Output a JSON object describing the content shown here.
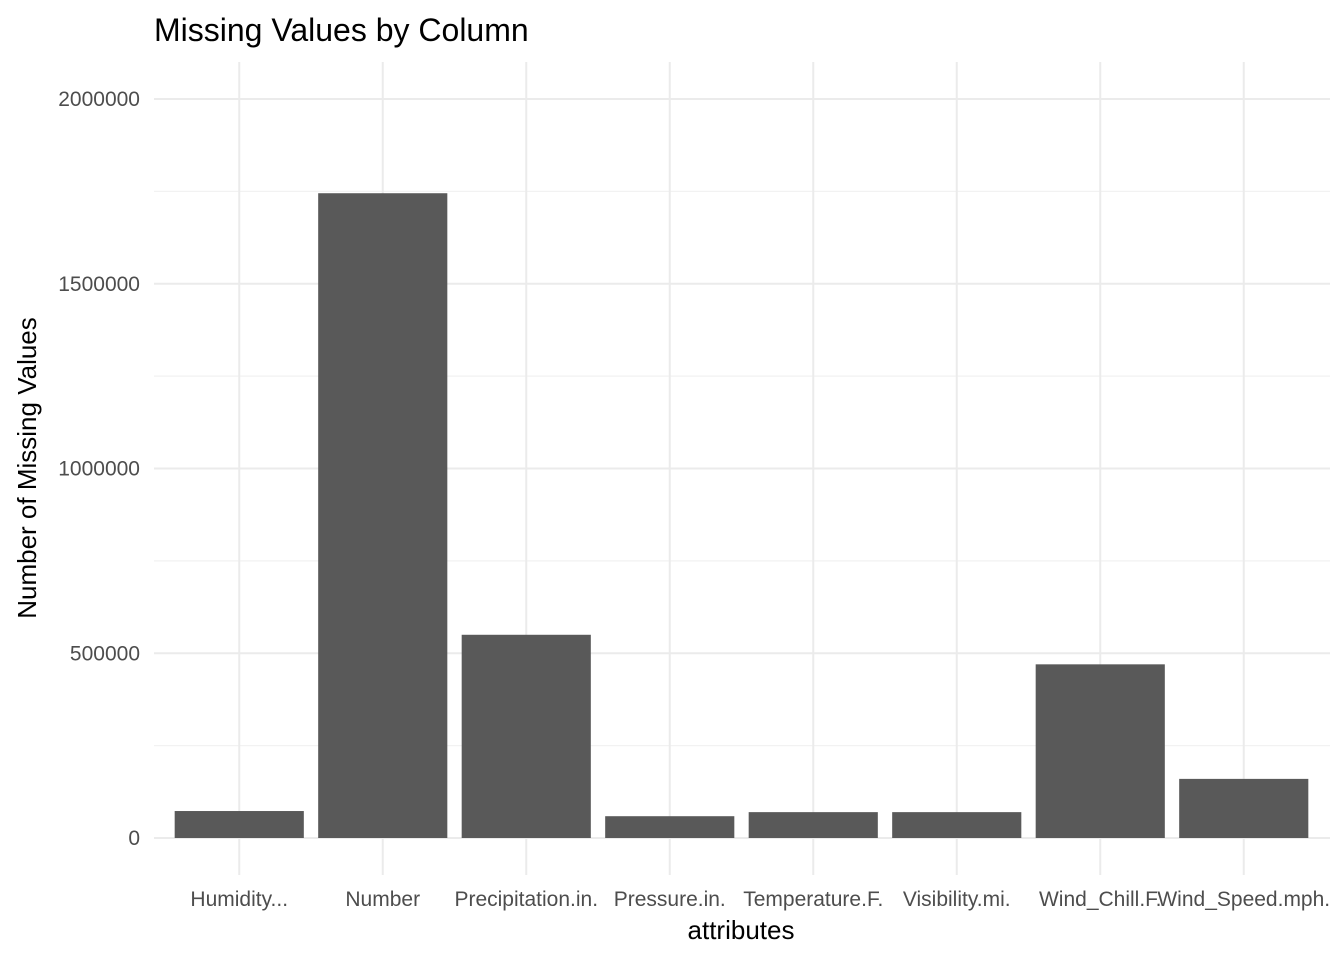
{
  "chart_data": {
    "type": "bar",
    "title": "Missing Values by Column",
    "xlabel": "attributes",
    "ylabel": "Number of Missing Values",
    "categories": [
      "Humidity...",
      "Number",
      "Precipitation.in.",
      "Pressure.in.",
      "Temperature.F.",
      "Visibility.mi.",
      "Wind_Chill.F.",
      "Wind_Speed.mph."
    ],
    "values": [
      73000,
      1745000,
      550000,
      59000,
      70000,
      70000,
      470000,
      160000
    ],
    "ylim": [
      0,
      2000000
    ],
    "yticks": [
      0,
      500000,
      1000000,
      1500000,
      2000000
    ],
    "ytick_labels": [
      "0",
      "500000",
      "1000000",
      "1500000",
      "2000000"
    ],
    "bar_color": "#595959",
    "grid": true,
    "legend": "none"
  }
}
